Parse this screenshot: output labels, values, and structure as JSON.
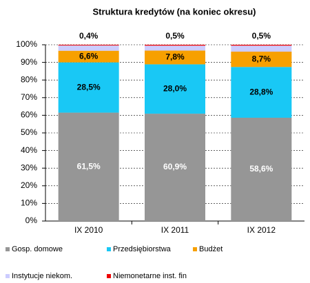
{
  "chart_data": {
    "type": "stacked_bar",
    "title": "Struktura kredytów (na koniec okresu)",
    "categories": [
      "IX 2010",
      "IX 2011",
      "IX 2012"
    ],
    "series": [
      {
        "name": "Gosp. domowe",
        "color": "#969696",
        "values": [
          61.5,
          60.9,
          58.6
        ],
        "value_labels": [
          "61,5%",
          "60,9%",
          "58,6%"
        ]
      },
      {
        "name": "Przedsiębiorstwa",
        "color": "#19c8f5",
        "values": [
          28.5,
          28.0,
          28.8
        ],
        "value_labels": [
          "28,5%",
          "28,0%",
          "28,8%"
        ]
      },
      {
        "name": "Budżet",
        "color": "#f7a000",
        "values": [
          6.6,
          7.8,
          8.7
        ],
        "value_labels": [
          "6,6%",
          "7,8%",
          "8,7%"
        ]
      },
      {
        "name": "Instytucje niekom.",
        "color": "#ccccff",
        "values": [
          3.0,
          2.8,
          3.4
        ]
      },
      {
        "name": "Niemonetarne inst. fin",
        "color": "#ee0000",
        "values": [
          0.4,
          0.5,
          0.5
        ],
        "value_labels": [
          "0,4%",
          "0,5%",
          "0,5%"
        ]
      }
    ],
    "ylim": [
      0,
      100
    ],
    "yticks": [
      {
        "value": 0,
        "label": "0%"
      },
      {
        "value": 10,
        "label": "10%"
      },
      {
        "value": 20,
        "label": "20%"
      },
      {
        "value": 30,
        "label": "30%"
      },
      {
        "value": 40,
        "label": "40%"
      },
      {
        "value": 50,
        "label": "50%"
      },
      {
        "value": 60,
        "label": "60%"
      },
      {
        "value": 70,
        "label": "70%"
      },
      {
        "value": 80,
        "label": "80%"
      },
      {
        "value": 90,
        "label": "90%"
      },
      {
        "value": 100,
        "label": "100%"
      }
    ],
    "grid": true
  }
}
